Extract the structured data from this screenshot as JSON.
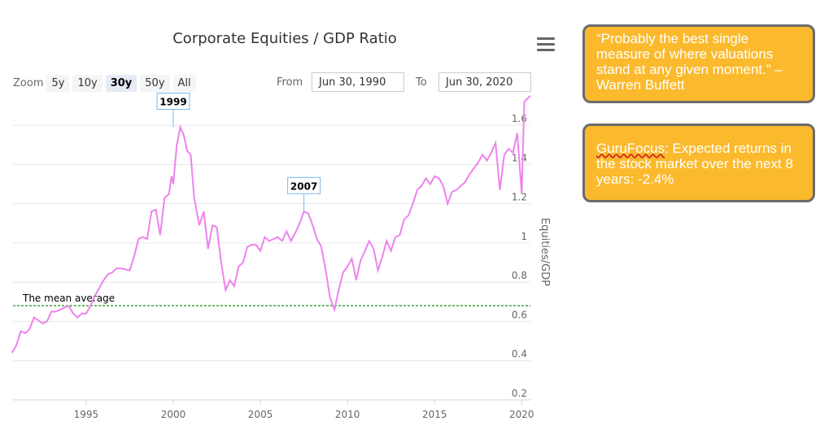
{
  "toolbar": {
    "zoom_label": "Zoom",
    "zoom_buttons": [
      "5y",
      "10y",
      "30y",
      "50y",
      "All"
    ],
    "active_zoom": "30y",
    "from_label": "From",
    "from_value": "Jun 30, 1990",
    "to_label": "To",
    "to_value": "Jun 30, 2020"
  },
  "quotes": {
    "buffett": "“Probably the best single measure of where valuations stand at any given moment.” – Warren Buffett",
    "gurufocus_brand": "GuruFocus",
    "gurufocus_text": ": Expected returns in the stock market over the next 8 years: -2.4%"
  },
  "chart_data": {
    "type": "line",
    "title": "Corporate Equities / GDP Ratio",
    "ylabel": "Equities/GDP",
    "xlabel": "",
    "xlim": [
      1990.8,
      2020.5
    ],
    "ylim": [
      0.2,
      1.7
    ],
    "x_ticks": [
      "1995",
      "2000",
      "2005",
      "2010",
      "2015",
      "2020"
    ],
    "y_ticks": [
      "0.2",
      "0.4",
      "0.6",
      "0.8",
      "1",
      "1.2",
      "1.4",
      "1.6"
    ],
    "mean_line": {
      "value": 0.68,
      "label": "The mean average"
    },
    "annotations": [
      {
        "label": "1999",
        "x": 2000.0,
        "y": 1.59
      },
      {
        "label": "2007",
        "x": 2007.5,
        "y": 1.16
      }
    ],
    "series": [
      {
        "color": "#ee82ee",
        "points": [
          [
            1990.75,
            0.44
          ],
          [
            1991.0,
            0.48
          ],
          [
            1991.25,
            0.55
          ],
          [
            1991.5,
            0.54
          ],
          [
            1991.75,
            0.56
          ],
          [
            1992.0,
            0.62
          ],
          [
            1992.5,
            0.59
          ],
          [
            1992.75,
            0.6
          ],
          [
            1993.0,
            0.65
          ],
          [
            1993.25,
            0.65
          ],
          [
            1993.5,
            0.66
          ],
          [
            1993.75,
            0.67
          ],
          [
            1994.0,
            0.68
          ],
          [
            1994.25,
            0.64
          ],
          [
            1994.5,
            0.62
          ],
          [
            1994.75,
            0.64
          ],
          [
            1995.0,
            0.64
          ],
          [
            1995.25,
            0.68
          ],
          [
            1995.5,
            0.73
          ],
          [
            1995.75,
            0.77
          ],
          [
            1996.0,
            0.81
          ],
          [
            1996.25,
            0.84
          ],
          [
            1996.5,
            0.85
          ],
          [
            1996.75,
            0.87
          ],
          [
            1997.0,
            0.87
          ],
          [
            1997.5,
            0.86
          ],
          [
            1997.75,
            0.93
          ],
          [
            1998.0,
            1.02
          ],
          [
            1998.25,
            1.03
          ],
          [
            1998.5,
            1.02
          ],
          [
            1998.75,
            1.16
          ],
          [
            1999.0,
            1.17
          ],
          [
            1999.25,
            1.04
          ],
          [
            1999.5,
            1.23
          ],
          [
            1999.75,
            1.25
          ],
          [
            1999.9,
            1.34
          ],
          [
            2000.0,
            1.3
          ],
          [
            2000.2,
            1.5
          ],
          [
            2000.4,
            1.59
          ],
          [
            2000.6,
            1.55
          ],
          [
            2000.8,
            1.47
          ],
          [
            2001.0,
            1.45
          ],
          [
            2001.2,
            1.23
          ],
          [
            2001.5,
            1.09
          ],
          [
            2001.75,
            1.16
          ],
          [
            2002.0,
            0.97
          ],
          [
            2002.25,
            1.09
          ],
          [
            2002.5,
            1.08
          ],
          [
            2002.75,
            0.9
          ],
          [
            2003.0,
            0.76
          ],
          [
            2003.25,
            0.81
          ],
          [
            2003.5,
            0.78
          ],
          [
            2003.75,
            0.88
          ],
          [
            2004.0,
            0.9
          ],
          [
            2004.25,
            0.98
          ],
          [
            2004.5,
            0.99
          ],
          [
            2004.75,
            0.99
          ],
          [
            2005.0,
            0.96
          ],
          [
            2005.25,
            1.03
          ],
          [
            2005.5,
            1.01
          ],
          [
            2005.75,
            1.02
          ],
          [
            2006.0,
            1.03
          ],
          [
            2006.25,
            1.01
          ],
          [
            2006.5,
            1.06
          ],
          [
            2006.75,
            1.01
          ],
          [
            2007.0,
            1.05
          ],
          [
            2007.25,
            1.1
          ],
          [
            2007.5,
            1.16
          ],
          [
            2007.75,
            1.15
          ],
          [
            2008.0,
            1.09
          ],
          [
            2008.25,
            1.02
          ],
          [
            2008.5,
            0.98
          ],
          [
            2008.75,
            0.86
          ],
          [
            2009.0,
            0.72
          ],
          [
            2009.25,
            0.66
          ],
          [
            2009.5,
            0.76
          ],
          [
            2009.75,
            0.85
          ],
          [
            2010.0,
            0.88
          ],
          [
            2010.25,
            0.92
          ],
          [
            2010.5,
            0.81
          ],
          [
            2010.75,
            0.91
          ],
          [
            2011.0,
            0.96
          ],
          [
            2011.25,
            1.01
          ],
          [
            2011.5,
            0.97
          ],
          [
            2011.75,
            0.86
          ],
          [
            2012.0,
            0.93
          ],
          [
            2012.25,
            1.01
          ],
          [
            2012.5,
            0.96
          ],
          [
            2012.75,
            1.03
          ],
          [
            2013.0,
            1.04
          ],
          [
            2013.25,
            1.12
          ],
          [
            2013.5,
            1.14
          ],
          [
            2013.75,
            1.2
          ],
          [
            2014.0,
            1.27
          ],
          [
            2014.25,
            1.29
          ],
          [
            2014.5,
            1.33
          ],
          [
            2014.75,
            1.3
          ],
          [
            2015.0,
            1.34
          ],
          [
            2015.25,
            1.33
          ],
          [
            2015.5,
            1.29
          ],
          [
            2015.75,
            1.2
          ],
          [
            2016.0,
            1.26
          ],
          [
            2016.25,
            1.27
          ],
          [
            2016.5,
            1.29
          ],
          [
            2016.75,
            1.31
          ],
          [
            2017.0,
            1.35
          ],
          [
            2017.25,
            1.38
          ],
          [
            2017.5,
            1.41
          ],
          [
            2017.75,
            1.45
          ],
          [
            2018.0,
            1.42
          ],
          [
            2018.25,
            1.46
          ],
          [
            2018.5,
            1.51
          ],
          [
            2018.75,
            1.27
          ],
          [
            2019.0,
            1.45
          ],
          [
            2019.25,
            1.48
          ],
          [
            2019.5,
            1.46
          ],
          [
            2019.75,
            1.56
          ],
          [
            2020.0,
            1.25
          ],
          [
            2020.15,
            1.72
          ],
          [
            2020.5,
            1.75
          ]
        ]
      }
    ]
  }
}
